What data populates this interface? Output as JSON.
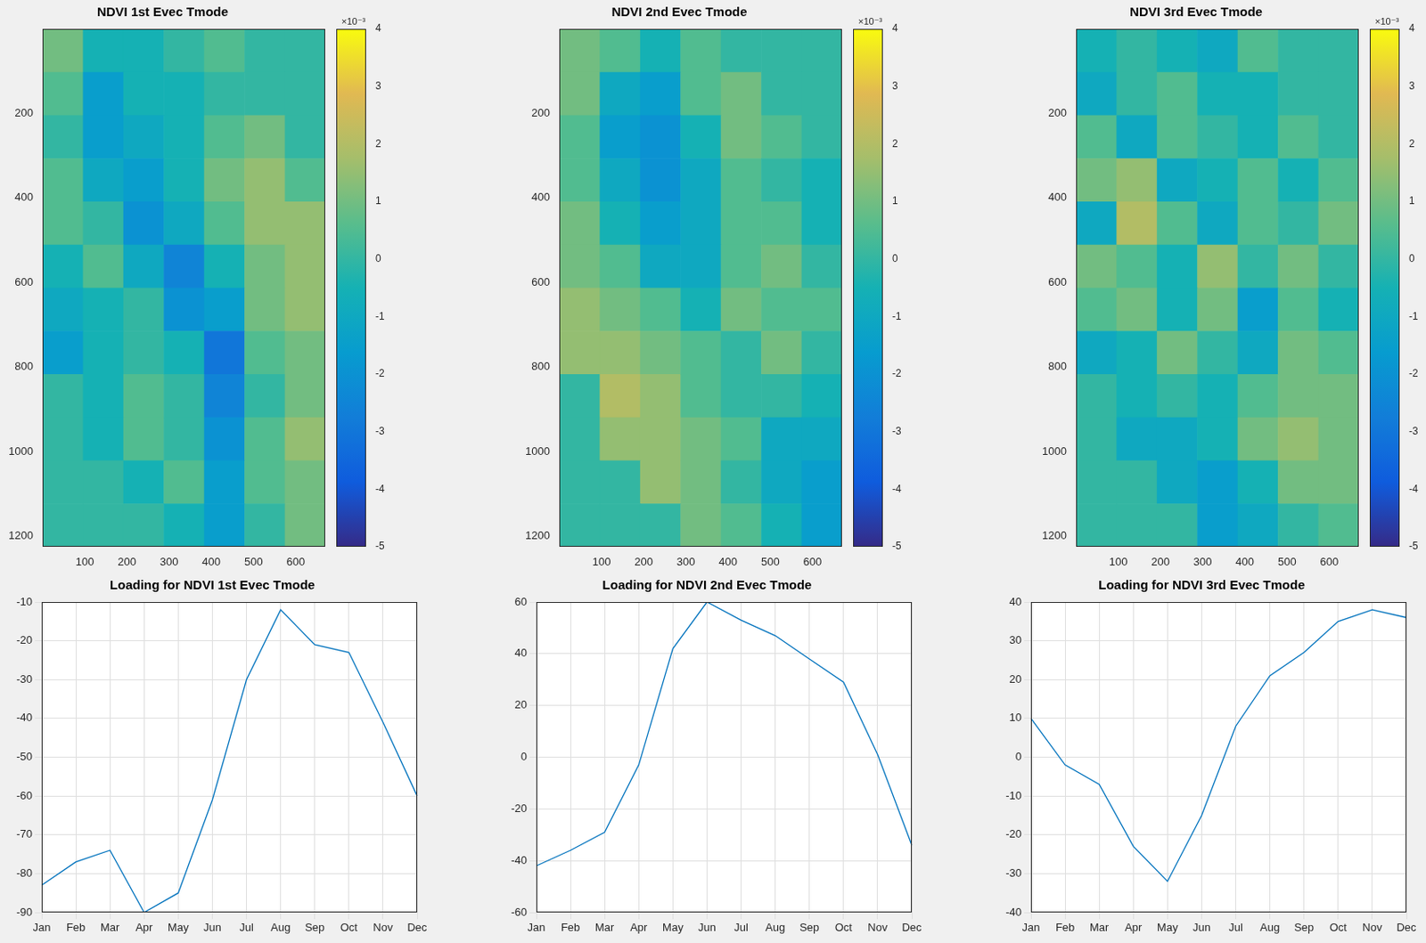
{
  "chart_data": [
    {
      "type": "heatmap",
      "title": "NDVI 1st Evec Tmode",
      "xlim": [
        0,
        670
      ],
      "ylim": [
        1225,
        0
      ],
      "xticks": [
        100,
        200,
        300,
        400,
        500,
        600
      ],
      "yticks": [
        200,
        400,
        600,
        800,
        1000,
        1200
      ],
      "colorbar_range": [
        -5,
        4
      ],
      "colorbar_ticks": [
        -5,
        -4,
        -3,
        -2,
        -1,
        0,
        1,
        2,
        3,
        4
      ],
      "colorbar_label": "×10⁻³",
      "cells": [
        [
          1,
          -0.5,
          -0.5,
          0,
          0.5,
          0,
          0
        ],
        [
          0.5,
          -1.5,
          -0.5,
          -0.5,
          0,
          0,
          0
        ],
        [
          0,
          -1.5,
          -1,
          -0.5,
          0.5,
          1,
          0
        ],
        [
          0.5,
          -1,
          -1.5,
          -0.5,
          1,
          1.5,
          0.5
        ],
        [
          0.5,
          0,
          -2,
          -1,
          0.5,
          1.5,
          1.5
        ],
        [
          -0.5,
          0.5,
          -1,
          -2.5,
          -0.5,
          1,
          1.5
        ],
        [
          -1,
          -0.5,
          0,
          -2,
          -1.5,
          1,
          1.5
        ],
        [
          -1.5,
          -0.5,
          0,
          -0.5,
          -3,
          0.5,
          1
        ],
        [
          0,
          -0.5,
          0.5,
          0,
          -2.5,
          0,
          1
        ],
        [
          0,
          -0.5,
          0.5,
          0,
          -2,
          0.5,
          1.5
        ],
        [
          0,
          0,
          -0.5,
          0.5,
          -1.5,
          0.5,
          1
        ],
        [
          0,
          0,
          0,
          -0.5,
          -1.5,
          0,
          1
        ]
      ]
    },
    {
      "type": "heatmap",
      "title": "NDVI 2nd Evec Tmode",
      "xlim": [
        0,
        670
      ],
      "ylim": [
        1225,
        0
      ],
      "xticks": [
        100,
        200,
        300,
        400,
        500,
        600
      ],
      "yticks": [
        200,
        400,
        600,
        800,
        1000,
        1200
      ],
      "colorbar_range": [
        -5,
        4
      ],
      "colorbar_ticks": [
        -5,
        -4,
        -3,
        -2,
        -1,
        0,
        1,
        2,
        3,
        4
      ],
      "colorbar_label": "×10⁻³",
      "cells": [
        [
          1,
          0.5,
          -0.5,
          0.5,
          0,
          0,
          0
        ],
        [
          1,
          -1,
          -1.5,
          0.5,
          1,
          0,
          0
        ],
        [
          0.5,
          -1.5,
          -2,
          -0.5,
          1,
          0.5,
          0
        ],
        [
          0.5,
          -1,
          -2,
          -1,
          0.5,
          0,
          -0.5
        ],
        [
          1,
          -0.5,
          -1.5,
          -1,
          0.5,
          0.5,
          -0.5
        ],
        [
          1,
          0.5,
          -1,
          -1,
          0.5,
          1,
          0
        ],
        [
          1.5,
          1,
          0.5,
          -0.5,
          1,
          0.5,
          0.5
        ],
        [
          1.5,
          1.5,
          1,
          0.5,
          0,
          1,
          0
        ],
        [
          0,
          2,
          1.5,
          0.5,
          0,
          0,
          -0.5
        ],
        [
          0,
          1.5,
          1.5,
          1,
          0.5,
          -1,
          -1
        ],
        [
          0,
          0,
          1.5,
          1,
          0,
          -1,
          -1.5
        ],
        [
          0,
          0,
          0,
          1,
          0.5,
          -0.5,
          -1.5
        ]
      ]
    },
    {
      "type": "heatmap",
      "title": "NDVI 3rd Evec Tmode",
      "xlim": [
        0,
        670
      ],
      "ylim": [
        1225,
        0
      ],
      "xticks": [
        100,
        200,
        300,
        400,
        500,
        600
      ],
      "yticks": [
        200,
        400,
        600,
        800,
        1000,
        1200
      ],
      "colorbar_range": [
        -5,
        4
      ],
      "colorbar_ticks": [
        -5,
        -4,
        -3,
        -2,
        -1,
        0,
        1,
        2,
        3,
        4
      ],
      "colorbar_label": "×10⁻³",
      "cells": [
        [
          -0.5,
          0,
          -0.5,
          -1,
          0.5,
          0,
          0
        ],
        [
          -1,
          0,
          0.5,
          -0.5,
          -0.5,
          0,
          0
        ],
        [
          0.5,
          -1,
          0.5,
          0,
          -0.5,
          0.5,
          0
        ],
        [
          1,
          1.5,
          -1,
          -0.5,
          0.5,
          -0.5,
          0.5
        ],
        [
          -1,
          2,
          0.5,
          -1,
          0.5,
          0,
          1
        ],
        [
          1,
          0.5,
          -0.5,
          1.5,
          0,
          1,
          0
        ],
        [
          0.5,
          1,
          -0.5,
          1,
          -1.5,
          0.5,
          -0.5
        ],
        [
          -1,
          -0.5,
          1,
          0,
          -1,
          1,
          0.5
        ],
        [
          0,
          -0.5,
          0,
          -0.5,
          0.5,
          1,
          1
        ],
        [
          0,
          -1,
          -1,
          -0.5,
          1,
          1.5,
          1
        ],
        [
          0,
          0,
          -1,
          -1.5,
          -0.5,
          1,
          1
        ],
        [
          0,
          0,
          0,
          -1.5,
          -1,
          0,
          0.5
        ]
      ]
    },
    {
      "type": "line",
      "title": "Loading for NDVI 1st Evec Tmode",
      "categories": [
        "Jan",
        "Feb",
        "Mar",
        "Apr",
        "May",
        "Jun",
        "Jul",
        "Aug",
        "Sep",
        "Oct",
        "Nov",
        "Dec"
      ],
      "values": [
        -83,
        -77,
        -74,
        -90,
        -85,
        -61,
        -30,
        -12,
        -21,
        -23,
        -41,
        -60
      ],
      "color": "#0072bd",
      "grid": true,
      "ylim": [
        -90,
        -10
      ],
      "yticks": [
        -90,
        -80,
        -70,
        -60,
        -50,
        -40,
        -30,
        -20,
        -10
      ]
    },
    {
      "type": "line",
      "title": "Loading for NDVI 2nd Evec Tmode",
      "categories": [
        "Jan",
        "Feb",
        "Mar",
        "Apr",
        "May",
        "Jun",
        "Jul",
        "Aug",
        "Sep",
        "Oct",
        "Nov",
        "Dec"
      ],
      "values": [
        -42,
        -36,
        -29,
        -3,
        42,
        60,
        53,
        47,
        38,
        29,
        1,
        -34
      ],
      "color": "#0072bd",
      "grid": true,
      "ylim": [
        -60,
        60
      ],
      "yticks": [
        -60,
        -40,
        -20,
        0,
        20,
        40,
        60
      ]
    },
    {
      "type": "line",
      "title": "Loading for NDVI 3rd Evec Tmode",
      "categories": [
        "Jan",
        "Feb",
        "Mar",
        "Apr",
        "May",
        "Jun",
        "Jul",
        "Aug",
        "Sep",
        "Oct",
        "Nov",
        "Dec"
      ],
      "values": [
        10,
        -2,
        -7,
        -23,
        -32,
        -15,
        8,
        21,
        27,
        35,
        38,
        36
      ],
      "color": "#0072bd",
      "grid": true,
      "ylim": [
        -40,
        40
      ],
      "yticks": [
        -40,
        -30,
        -20,
        -10,
        0,
        10,
        20,
        30,
        40
      ]
    }
  ]
}
